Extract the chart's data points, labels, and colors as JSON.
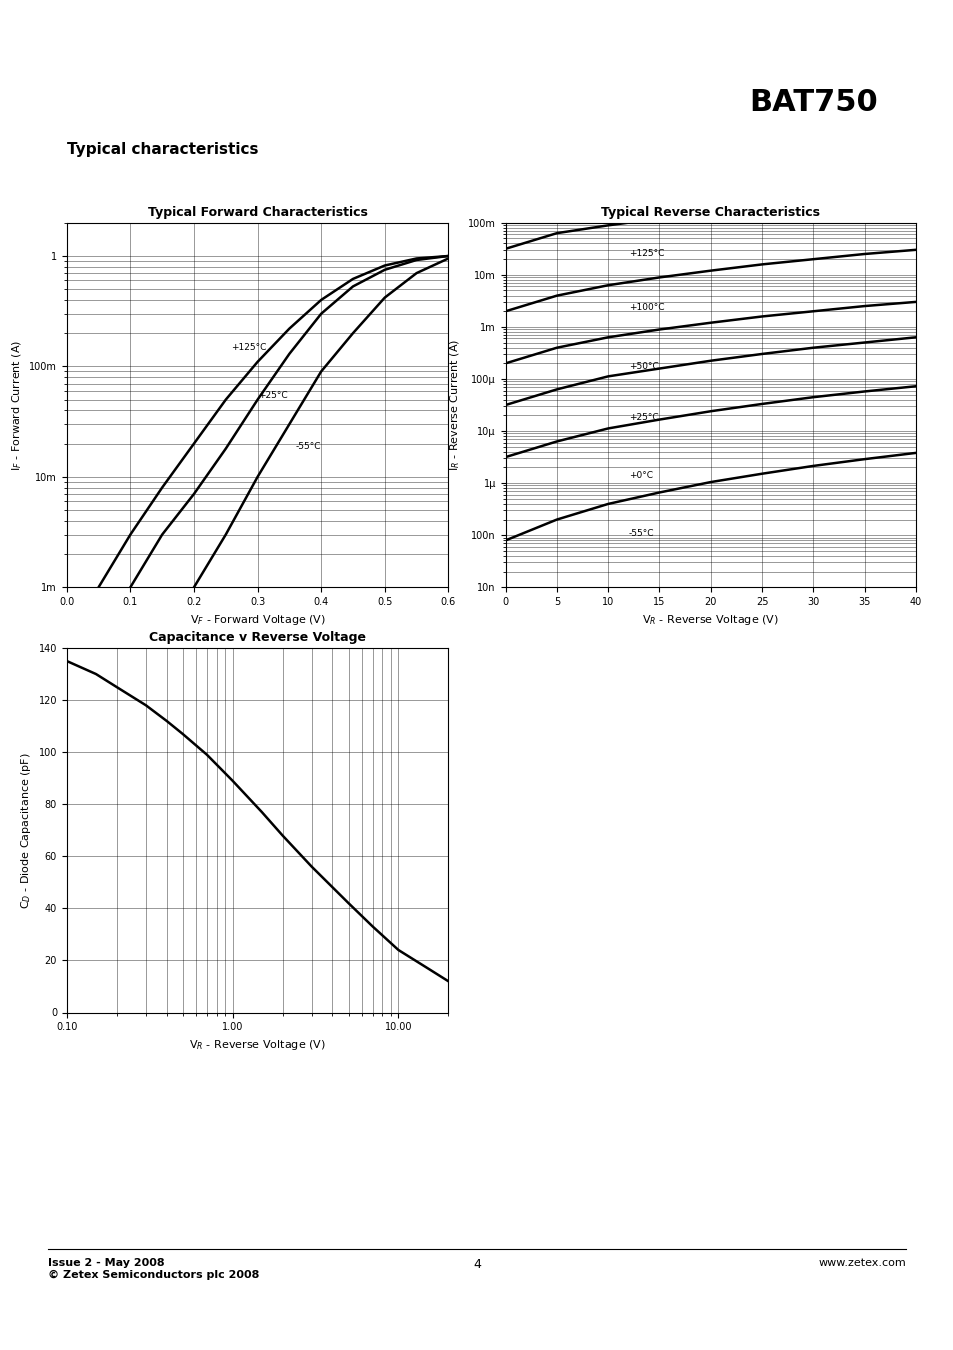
{
  "title": "BAT750",
  "subtitle": "Typical characteristics",
  "plot1_title": "Typical Forward Characteristics",
  "plot1_xlabel": "V$_F$ - Forward Voltage (V)",
  "plot1_ylabel": "I$_F$ - Forward Current (A)",
  "plot1_xlim": [
    0.0,
    0.6
  ],
  "plot1_xticks": [
    0.0,
    0.1,
    0.2,
    0.3,
    0.4,
    0.5,
    0.6
  ],
  "plot1_ylim_log": [
    -3,
    0
  ],
  "plot1_curves": [
    {
      "label": "+125°C",
      "x": [
        0.05,
        0.1,
        0.15,
        0.2,
        0.25,
        0.3,
        0.35,
        0.4,
        0.45,
        0.5,
        0.55,
        0.6
      ],
      "y": [
        0.001,
        0.003,
        0.008,
        0.02,
        0.05,
        0.11,
        0.22,
        0.4,
        0.62,
        0.82,
        0.95,
        1.0
      ]
    },
    {
      "label": "+25°C",
      "x": [
        0.1,
        0.15,
        0.2,
        0.25,
        0.3,
        0.35,
        0.4,
        0.45,
        0.5,
        0.55,
        0.6
      ],
      "y": [
        0.001,
        0.003,
        0.007,
        0.018,
        0.05,
        0.13,
        0.3,
        0.53,
        0.75,
        0.92,
        1.0
      ]
    },
    {
      "label": "-55°C",
      "x": [
        0.2,
        0.25,
        0.3,
        0.35,
        0.4,
        0.45,
        0.5,
        0.55,
        0.6
      ],
      "y": [
        0.001,
        0.003,
        0.01,
        0.03,
        0.09,
        0.2,
        0.42,
        0.7,
        0.95
      ]
    }
  ],
  "plot2_title": "Typical Reverse Characteristics",
  "plot2_xlabel": "V$_R$ - Reverse Voltage (V)",
  "plot2_ylabel": "I$_R$ - Reverse Current (A)",
  "plot2_xlim": [
    0,
    40
  ],
  "plot2_xticks": [
    0,
    5,
    10,
    15,
    20,
    25,
    30,
    35,
    40
  ],
  "plot2_curves": [
    {
      "label": "+125°C",
      "x": [
        0,
        5,
        10,
        15,
        20,
        25,
        30,
        35,
        40
      ],
      "y_log": [
        -1.5,
        -1.2,
        -1.05,
        -0.92,
        -0.82,
        -0.72,
        -0.64,
        -0.57,
        -0.5
      ]
    },
    {
      "label": "+100°C",
      "x": [
        0,
        5,
        10,
        15,
        20,
        25,
        30,
        35,
        40
      ],
      "y_log": [
        -2.7,
        -2.4,
        -2.2,
        -2.05,
        -1.92,
        -1.8,
        -1.7,
        -1.6,
        -1.52
      ]
    },
    {
      "label": "+50°C",
      "x": [
        0,
        5,
        10,
        15,
        20,
        25,
        30,
        35,
        40
      ],
      "y_log": [
        -3.7,
        -3.4,
        -3.2,
        -3.05,
        -2.92,
        -2.8,
        -2.7,
        -2.6,
        -2.52
      ]
    },
    {
      "label": "+25°C",
      "x": [
        0,
        5,
        10,
        15,
        20,
        25,
        30,
        35,
        40
      ],
      "y_log": [
        -4.5,
        -4.2,
        -3.95,
        -3.8,
        -3.65,
        -3.52,
        -3.4,
        -3.3,
        -3.2
      ]
    },
    {
      "label": "+0°C",
      "x": [
        0,
        5,
        10,
        15,
        20,
        25,
        30,
        35,
        40
      ],
      "y_log": [
        -5.5,
        -5.2,
        -4.95,
        -4.78,
        -4.62,
        -4.48,
        -4.35,
        -4.24,
        -4.14
      ]
    },
    {
      "label": "-55°C",
      "x": [
        0,
        5,
        10,
        15,
        20,
        25,
        30,
        35,
        40
      ],
      "y_log": [
        -7.1,
        -6.7,
        -6.4,
        -6.18,
        -5.98,
        -5.82,
        -5.67,
        -5.54,
        -5.42
      ]
    }
  ],
  "plot3_title": "Capacitance v Reverse Voltage",
  "plot3_xlabel": "V$_R$ - Reverse Voltage (V)",
  "plot3_ylabel": "C$_D$ - Diode Capacitance (pF)",
  "plot3_xlim_log": [
    -1,
    1.3
  ],
  "plot3_ylim": [
    0,
    140
  ],
  "plot3_yticks": [
    0,
    20,
    40,
    60,
    80,
    100,
    120,
    140
  ],
  "plot3_curve_x": [
    0.1,
    0.15,
    0.2,
    0.3,
    0.4,
    0.5,
    0.7,
    1.0,
    1.5,
    2.0,
    3.0,
    5.0,
    7.0,
    10.0,
    15.0,
    20.0
  ],
  "plot3_curve_y": [
    135,
    130,
    125,
    118,
    112,
    107,
    99,
    89,
    77,
    68,
    56,
    42,
    33,
    24,
    17,
    12
  ],
  "footer_left": "Issue 2 - May 2008\n© Zetex Semiconductors plc 2008",
  "footer_center": "4",
  "footer_right": "www.zetex.com"
}
